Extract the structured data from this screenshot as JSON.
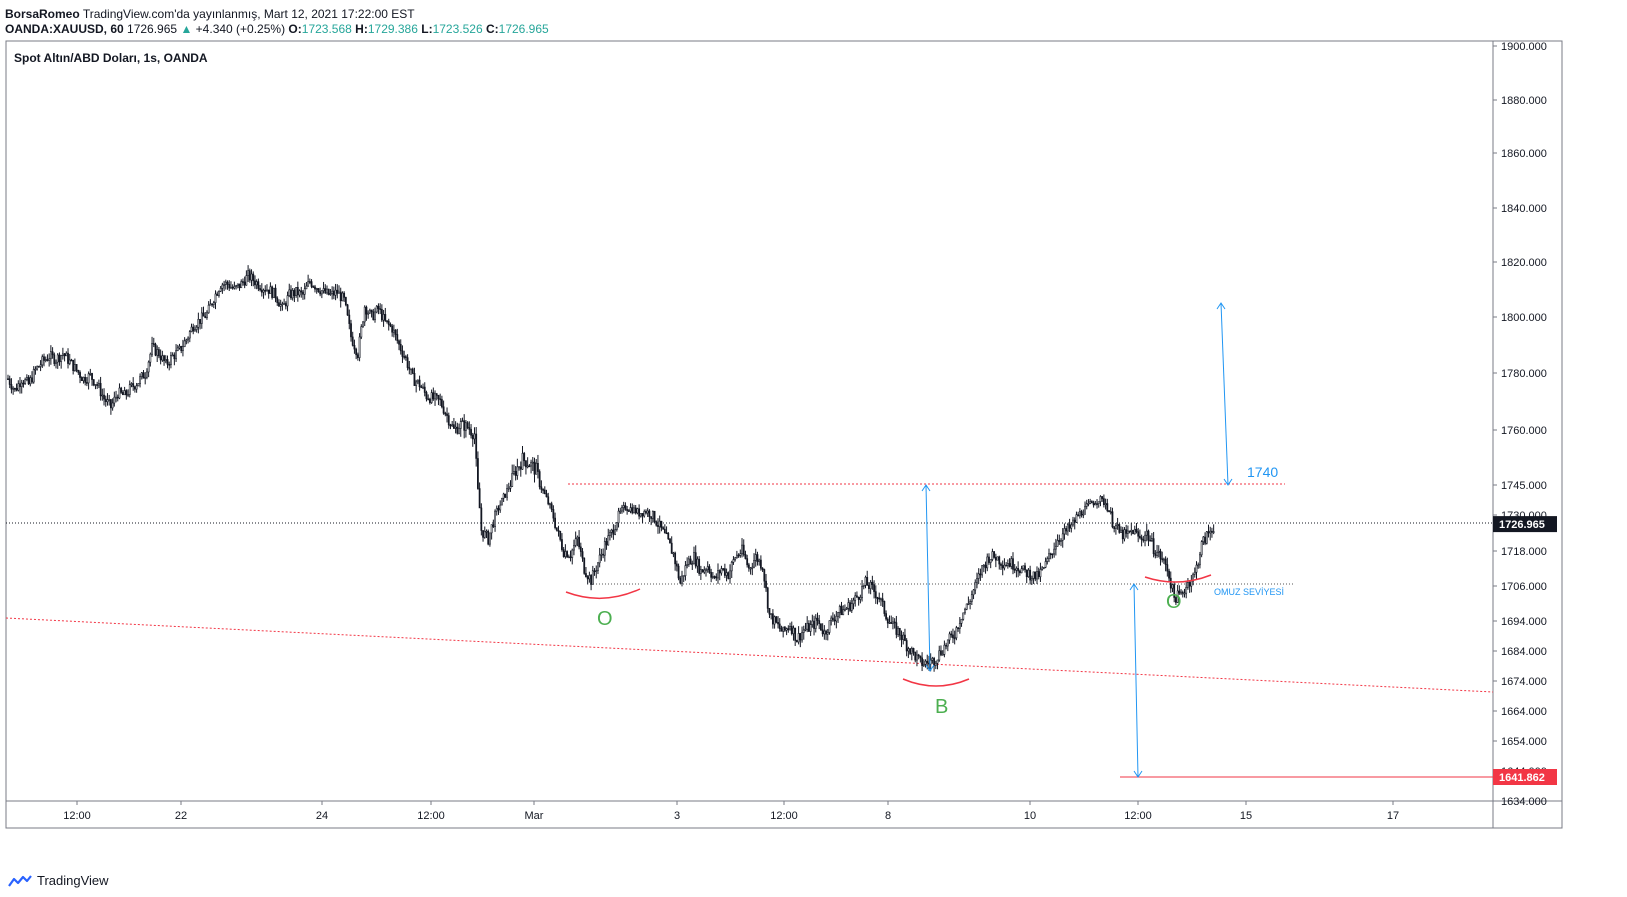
{
  "header": {
    "author": "BorsaRomeo",
    "published": "TradingView.com'da yayınlanmış, Mart 12, 2021 17:22:00 EST",
    "symbol": "OANDA:XAUUSD, 60",
    "last": "1726.965",
    "change_arrow": "▲",
    "change": "+4.340 (+0.25%)",
    "o_label": "O:",
    "o_value": "1723.568",
    "h_label": "H:",
    "h_value": "1729.386",
    "l_label": "L:",
    "l_value": "1723.526",
    "c_label": "C:",
    "c_value": "1726.965"
  },
  "footer": {
    "brand": "TradingView",
    "logo_icon": "tradingview-logo-icon"
  },
  "colors": {
    "candle": "#131722",
    "annotation_blue": "#2196f3",
    "annotation_red": "#f23645",
    "label_green": "#4caf50",
    "last_price_bg": "#131722",
    "marked_price_bg": "#f23645"
  },
  "chart_data": {
    "type": "candlestick",
    "title": "Spot Altın/ABD Doları, 1s, OANDA",
    "y_axis_labels": [
      "1900.000",
      "1880.000",
      "1860.000",
      "1840.000",
      "1820.000",
      "1800.000",
      "1780.000",
      "1760.000",
      "1745.000",
      "1730.000",
      "1718.000",
      "1706.000",
      "1694.000",
      "1684.000",
      "1674.000",
      "1664.000",
      "1654.000",
      "1644.000",
      "1634.000"
    ],
    "x_axis_labels": [
      "12:00",
      "22",
      "24",
      "12:00",
      "Mar",
      "3",
      "12:00",
      "8",
      "10",
      "12:00",
      "15",
      "17"
    ],
    "price_tags": {
      "last": "1726.965",
      "marked": "1641.862"
    },
    "close_path": [
      [
        0,
        1778
      ],
      [
        4,
        1774
      ],
      [
        8,
        1778
      ],
      [
        12,
        1776
      ],
      [
        16,
        1781
      ],
      [
        20,
        1784
      ],
      [
        24,
        1786
      ],
      [
        28,
        1785
      ],
      [
        32,
        1787
      ],
      [
        36,
        1784
      ],
      [
        40,
        1781
      ],
      [
        44,
        1778
      ],
      [
        48,
        1779
      ],
      [
        52,
        1776
      ],
      [
        56,
        1771
      ],
      [
        60,
        1768
      ],
      [
        64,
        1773
      ],
      [
        68,
        1772
      ],
      [
        72,
        1775
      ],
      [
        76,
        1777
      ],
      [
        80,
        1780
      ],
      [
        84,
        1789
      ],
      [
        88,
        1787
      ],
      [
        92,
        1783
      ],
      [
        96,
        1786
      ],
      [
        100,
        1788
      ],
      [
        104,
        1792
      ],
      [
        108,
        1797
      ],
      [
        112,
        1799
      ],
      [
        116,
        1801
      ],
      [
        120,
        1807
      ],
      [
        124,
        1812
      ],
      [
        128,
        1812
      ],
      [
        132,
        1810
      ],
      [
        136,
        1812
      ],
      [
        140,
        1815
      ],
      [
        144,
        1813
      ],
      [
        148,
        1811
      ],
      [
        152,
        1810
      ],
      [
        156,
        1808
      ],
      [
        160,
        1803
      ],
      [
        164,
        1808
      ],
      [
        168,
        1809
      ],
      [
        172,
        1808
      ],
      [
        176,
        1813
      ],
      [
        180,
        1811
      ],
      [
        184,
        1809
      ],
      [
        188,
        1808
      ],
      [
        192,
        1809
      ],
      [
        196,
        1806
      ],
      [
        200,
        1793
      ],
      [
        204,
        1787
      ],
      [
        208,
        1804
      ],
      [
        212,
        1800
      ],
      [
        216,
        1803
      ],
      [
        220,
        1798
      ],
      [
        224,
        1796
      ],
      [
        228,
        1790
      ],
      [
        232,
        1785
      ],
      [
        236,
        1778
      ],
      [
        240,
        1776
      ],
      [
        244,
        1772
      ],
      [
        248,
        1771
      ],
      [
        252,
        1770
      ],
      [
        256,
        1765
      ],
      [
        260,
        1760
      ],
      [
        264,
        1762
      ],
      [
        268,
        1761
      ],
      [
        272,
        1759
      ],
      [
        276,
        1725
      ],
      [
        280,
        1722
      ],
      [
        284,
        1730
      ],
      [
        288,
        1737
      ],
      [
        292,
        1744
      ],
      [
        296,
        1749
      ],
      [
        300,
        1752
      ],
      [
        304,
        1751
      ],
      [
        308,
        1749
      ],
      [
        312,
        1742
      ],
      [
        316,
        1734
      ],
      [
        320,
        1725
      ],
      [
        324,
        1718
      ],
      [
        328,
        1717
      ],
      [
        332,
        1722
      ],
      [
        336,
        1712
      ],
      [
        340,
        1708
      ],
      [
        344,
        1714
      ],
      [
        348,
        1720
      ],
      [
        352,
        1724
      ],
      [
        356,
        1730
      ],
      [
        360,
        1734
      ],
      [
        364,
        1733
      ],
      [
        368,
        1731
      ],
      [
        372,
        1732
      ],
      [
        376,
        1730
      ],
      [
        380,
        1726
      ],
      [
        384,
        1722
      ],
      [
        388,
        1717
      ],
      [
        392,
        1707
      ],
      [
        396,
        1714
      ],
      [
        400,
        1716
      ],
      [
        404,
        1711
      ],
      [
        408,
        1713
      ],
      [
        412,
        1708
      ],
      [
        416,
        1712
      ],
      [
        420,
        1710
      ],
      [
        424,
        1716
      ],
      [
        428,
        1718
      ],
      [
        432,
        1712
      ],
      [
        436,
        1716
      ],
      [
        440,
        1713
      ],
      [
        444,
        1696
      ],
      [
        448,
        1693
      ],
      [
        452,
        1690
      ],
      [
        456,
        1693
      ],
      [
        460,
        1688
      ],
      [
        464,
        1691
      ],
      [
        468,
        1692
      ],
      [
        472,
        1694
      ],
      [
        476,
        1690
      ],
      [
        480,
        1694
      ],
      [
        484,
        1697
      ],
      [
        488,
        1698
      ],
      [
        492,
        1700
      ],
      [
        496,
        1703
      ],
      [
        500,
        1707
      ],
      [
        504,
        1705
      ],
      [
        508,
        1702
      ],
      [
        512,
        1696
      ],
      [
        516,
        1692
      ],
      [
        520,
        1690
      ],
      [
        524,
        1686
      ],
      [
        528,
        1683
      ],
      [
        532,
        1680
      ],
      [
        536,
        1680
      ],
      [
        540,
        1681
      ],
      [
        544,
        1684
      ],
      [
        548,
        1687
      ],
      [
        552,
        1690
      ],
      [
        556,
        1696
      ],
      [
        560,
        1700
      ],
      [
        564,
        1706
      ],
      [
        568,
        1712
      ],
      [
        572,
        1716
      ],
      [
        576,
        1716
      ],
      [
        580,
        1714
      ],
      [
        584,
        1714
      ],
      [
        588,
        1713
      ],
      [
        592,
        1711
      ],
      [
        596,
        1710
      ],
      [
        600,
        1709
      ],
      [
        604,
        1712
      ],
      [
        608,
        1717
      ],
      [
        612,
        1722
      ],
      [
        616,
        1724
      ],
      [
        620,
        1726
      ],
      [
        624,
        1730
      ],
      [
        628,
        1733
      ],
      [
        632,
        1736
      ],
      [
        636,
        1738
      ],
      [
        640,
        1736
      ],
      [
        644,
        1728
      ],
      [
        648,
        1724
      ],
      [
        652,
        1723
      ],
      [
        656,
        1725
      ],
      [
        660,
        1722
      ],
      [
        664,
        1724
      ],
      [
        668,
        1719
      ],
      [
        672,
        1716
      ],
      [
        676,
        1712
      ],
      [
        680,
        1702
      ],
      [
        684,
        1703
      ],
      [
        688,
        1707
      ],
      [
        692,
        1710
      ],
      [
        696,
        1720
      ],
      [
        700,
        1724
      ],
      [
        704,
        1727
      ]
    ],
    "annotations": {
      "labels": [
        "O",
        "B",
        "O"
      ],
      "target_label": "1740",
      "neckline_label": "OMUZ SEVİYESİ"
    }
  }
}
